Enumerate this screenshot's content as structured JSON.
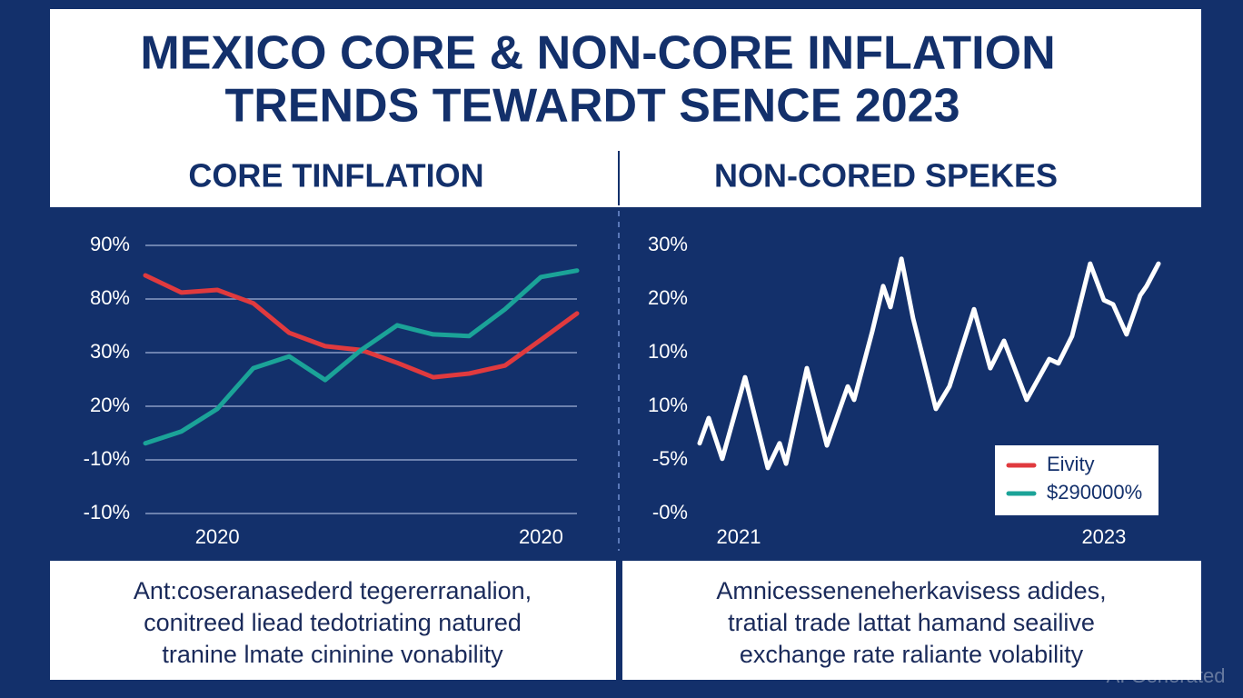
{
  "header": {
    "title_lines": [
      "MEXICO CORE & NON-CORE INFLATION",
      "TRENDS TEWARDT SENCE 2023"
    ]
  },
  "chart_data": [
    {
      "type": "line",
      "title": "CORE TINFLATION",
      "categories": [
        null,
        null,
        "2020",
        null,
        null,
        null,
        null,
        null,
        null,
        null,
        null,
        "2020",
        null
      ],
      "y_categories": [
        "-10%",
        "-10%",
        "20%",
        "30%",
        "80%",
        "90%"
      ],
      "series": [
        {
          "color": "#e03a3e",
          "values": [
            4.44,
            4.12,
            4.17,
            3.92,
            3.37,
            3.12,
            3.05,
            2.81,
            2.54,
            2.61,
            2.76,
            3.24,
            3.73
          ]
        },
        {
          "color": "#1ba398",
          "values": [
            1.31,
            1.53,
            1.95,
            2.71,
            2.93,
            2.49,
            3.05,
            3.51,
            3.34,
            3.31,
            3.81,
            4.41,
            4.53
          ]
        }
      ],
      "grid": true
    },
    {
      "type": "line",
      "title": "NON-CORED SPEKES",
      "x": [
        2020.786,
        2020.836,
        2020.91,
        2021.035,
        2021.159,
        2021.224,
        2021.259,
        2021.373,
        2021.483,
        2021.597,
        2021.632,
        2021.731,
        2021.791,
        2021.831,
        2021.891,
        2021.955,
        2022.08,
        2022.154,
        2022.289,
        2022.378,
        2022.453,
        2022.577,
        2022.701,
        2022.751,
        2022.826,
        2022.925,
        2023.0,
        2023.05,
        2023.124,
        2023.199,
        2023.234,
        2023.299
      ],
      "xlim": [
        2020.786,
        2023.299
      ],
      "xticks": [
        2021,
        2023
      ],
      "y_categories": [
        "-0%",
        "-5%",
        "10%",
        "10%",
        "20%",
        "30%"
      ],
      "series": [
        {
          "color": "#ffffff",
          "values": [
            1.31,
            1.78,
            1.02,
            2.54,
            0.85,
            1.31,
            0.93,
            2.71,
            1.27,
            2.37,
            2.12,
            3.39,
            4.24,
            3.85,
            4.75,
            3.64,
            1.95,
            2.37,
            3.81,
            2.71,
            3.22,
            2.12,
            2.88,
            2.8,
            3.31,
            4.66,
            3.98,
            3.9,
            3.34,
            4.07,
            4.24,
            4.66
          ]
        }
      ],
      "legend": {
        "position": "lower right",
        "entries": [
          {
            "name": "Eivity",
            "color": "#e03a3e"
          },
          {
            "name": "$290000%",
            "color": "#1ba398"
          }
        ]
      },
      "grid": false
    }
  ],
  "captions": [
    [
      "Ant:coseranasederd tegererranalion,",
      "conitreed liead tedotriating natured",
      "tranine lmate cininine vonability"
    ],
    [
      "Amnicesseneneherkavisess adides,",
      "tratial trade lattat hamand seailive",
      "exchange rate raliante volability"
    ]
  ],
  "watermark": "AI Generated"
}
